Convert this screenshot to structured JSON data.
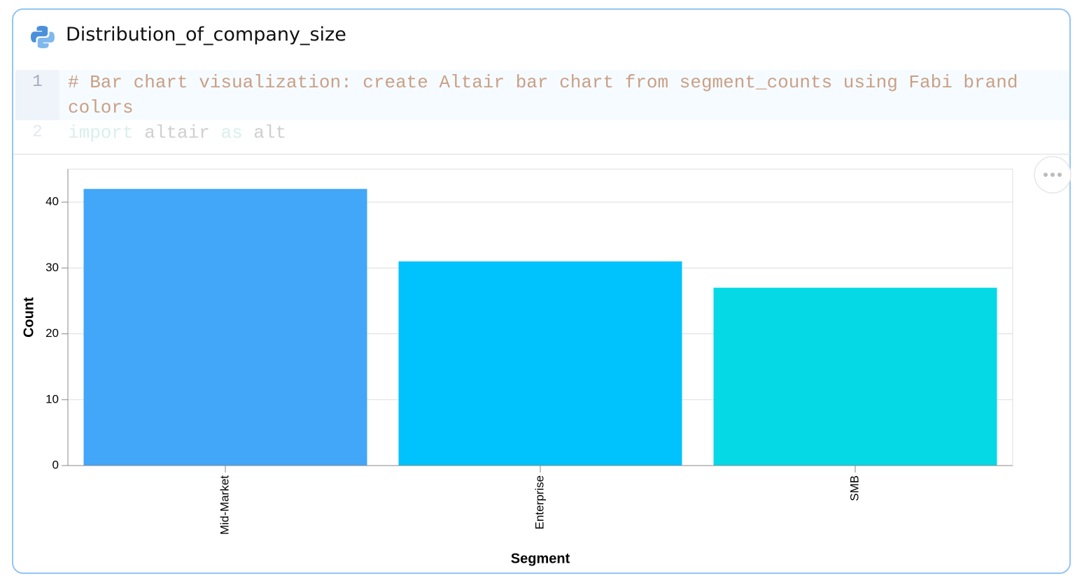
{
  "cell": {
    "title": "Distribution_of_company_size",
    "code": [
      {
        "number": 1,
        "text": "# Bar chart visualization: create Altair bar chart from segment_counts using Fabi brand colors"
      },
      {
        "number": 2,
        "tokens": [
          "import",
          "altair",
          "as",
          "alt"
        ]
      }
    ]
  },
  "chart_data": {
    "type": "bar",
    "x_label": "Segment",
    "y_label": "Count",
    "categories": [
      "Mid-Market",
      "Enterprise",
      "SMB"
    ],
    "values": [
      42,
      31,
      27
    ],
    "colors": [
      "#42a6f9",
      "#00c2fc",
      "#05d9e6"
    ],
    "ylim": [
      0,
      45
    ],
    "yticks": [
      0,
      10,
      20,
      30,
      40
    ],
    "grid": true
  }
}
